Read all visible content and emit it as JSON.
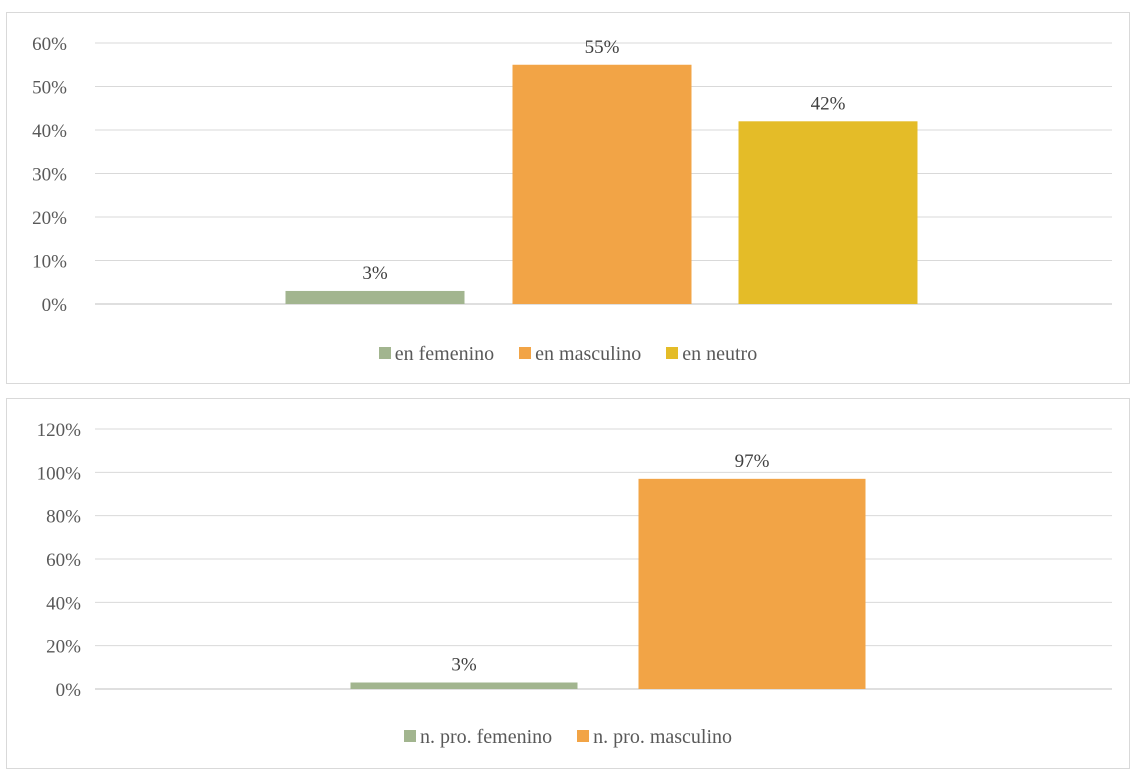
{
  "chart_data": [
    {
      "type": "bar",
      "categories": [
        "en femenino",
        "en masculino",
        "en neutro"
      ],
      "values": [
        3,
        55,
        42
      ],
      "data_labels": [
        "3%",
        "55%",
        "42%"
      ],
      "colors": [
        "#a2b58f",
        "#f2a446",
        "#e4bc28"
      ],
      "yticks": [
        "0%",
        "10%",
        "20%",
        "30%",
        "40%",
        "50%",
        "60%"
      ],
      "ylim": [
        0,
        60
      ],
      "grid": true,
      "legend": {
        "position": "bottom",
        "entries": [
          "en femenino",
          "en masculino",
          "en neutro"
        ]
      }
    },
    {
      "type": "bar",
      "categories": [
        "n. pro. femenino",
        "n. pro. masculino"
      ],
      "values": [
        3,
        97
      ],
      "data_labels": [
        "3%",
        "97%"
      ],
      "colors": [
        "#a2b58f",
        "#f2a446"
      ],
      "yticks": [
        "0%",
        "20%",
        "40%",
        "60%",
        "80%",
        "100%",
        "120%"
      ],
      "ylim": [
        0,
        120
      ],
      "grid": true,
      "legend": {
        "position": "bottom",
        "entries": [
          "n. pro. femenino",
          "n. pro. masculino"
        ]
      }
    }
  ]
}
